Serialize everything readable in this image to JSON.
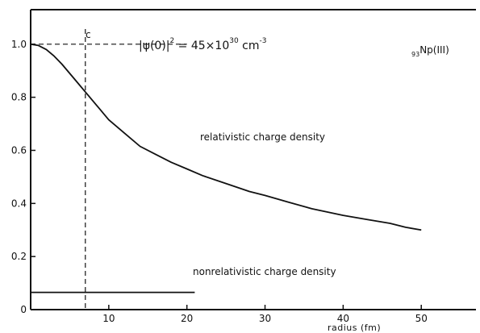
{
  "chart_data": {
    "type": "line",
    "title": "",
    "xlabel": "radius (fm)",
    "ylabel": "",
    "xlim": [
      0,
      57
    ],
    "ylim": [
      0,
      1.13
    ],
    "x_ticks": [
      10,
      20,
      30,
      40,
      50
    ],
    "y_ticks": [
      0,
      0.2,
      0.4,
      0.6,
      0.8,
      1.0
    ],
    "x_tick_labels": [
      "10",
      "20",
      "30",
      "40",
      "50"
    ],
    "y_tick_labels": [
      "0",
      "0.2",
      "0.4",
      "0.6",
      "0.8",
      "1.0"
    ],
    "series": [
      {
        "name": "relativistic charge density",
        "x": [
          0,
          1,
          2,
          3,
          4,
          5,
          6,
          7,
          8,
          9,
          10,
          12,
          14,
          16,
          18,
          20,
          22,
          25,
          28,
          30,
          33,
          36,
          40,
          43,
          46,
          48,
          50
        ],
        "y": [
          1.0,
          0.995,
          0.98,
          0.955,
          0.925,
          0.89,
          0.855,
          0.82,
          0.785,
          0.75,
          0.715,
          0.665,
          0.615,
          0.585,
          0.555,
          0.53,
          0.505,
          0.475,
          0.445,
          0.43,
          0.405,
          0.38,
          0.355,
          0.34,
          0.325,
          0.31,
          0.3
        ]
      },
      {
        "name": "nonrelativistic charge density",
        "x": [
          0,
          21
        ],
        "y": [
          0.065,
          0.065
        ]
      }
    ],
    "reference_lines": {
      "vertical_x": 7,
      "vertical_label": "c",
      "horizontal_y": 1.0,
      "horizontal_x_end": 20
    },
    "annotations": {
      "formula_left": "|ψ(0)|",
      "formula_sup": "2",
      "formula_mid": " = 45×10",
      "formula_exp": "30",
      "formula_unit": " cm",
      "formula_unit_exp": "-3",
      "element_sub": "93",
      "element": "Np(III)",
      "relativistic_label": "relativistic charge density",
      "nonrelativistic_label": "nonrelativistic charge density"
    },
    "grid": false
  }
}
